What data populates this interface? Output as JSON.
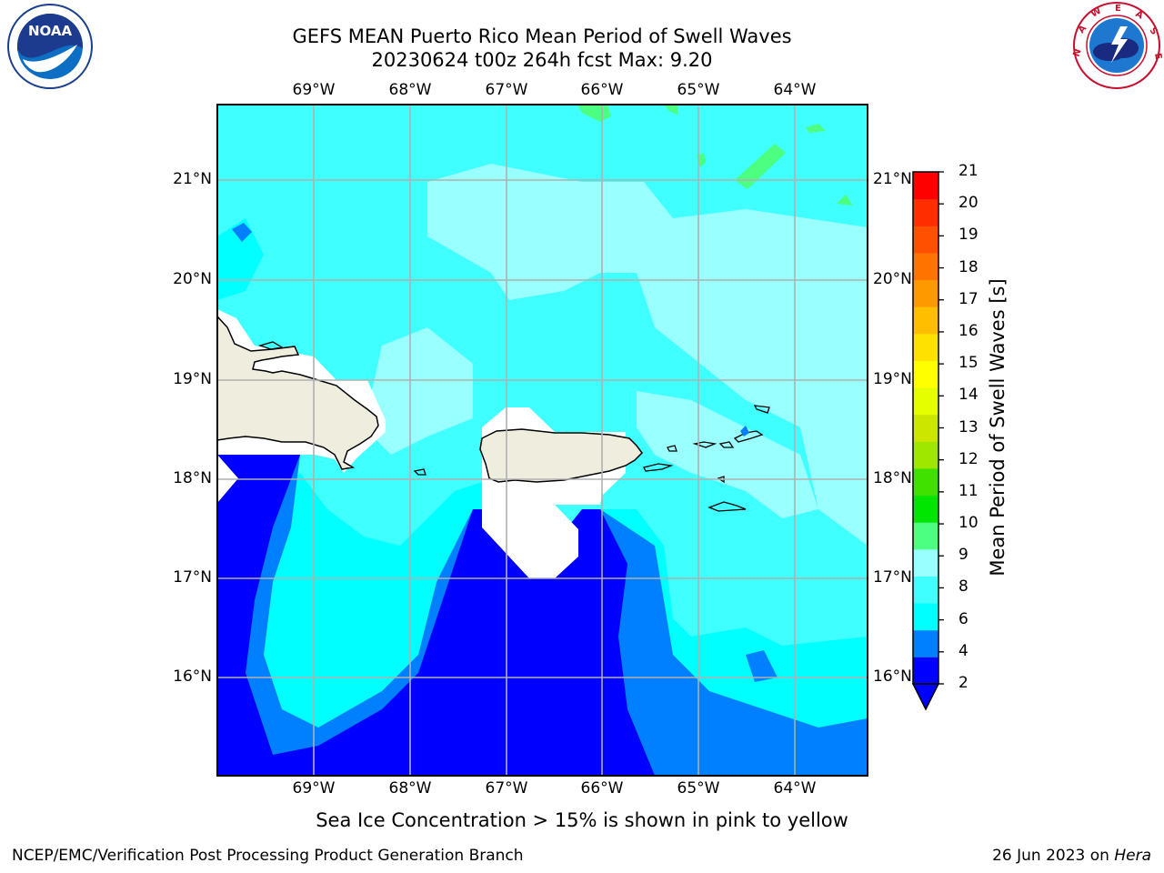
{
  "header": {
    "title_line1": "GEFS MEAN Puerto Rico Mean Period of Swell Waves",
    "title_line2": "20230624 t00z 264h fcst   Max: 9.20"
  },
  "logos": {
    "left": "NOAA",
    "left_ring": "NATIONAL OCEANIC AND ATMOSPHERIC ADMINISTRATION · U.S. DEPARTMENT OF COMMERCE",
    "right_ring": "NATIONAL WEATHER SERVICE"
  },
  "map": {
    "lon_labels": [
      "69°W",
      "68°W",
      "67°W",
      "66°W",
      "65°W",
      "64°W"
    ],
    "lat_labels": [
      "21°N",
      "20°N",
      "19°N",
      "18°N",
      "17°N",
      "16°N"
    ],
    "land_color": "#efedde",
    "coast_color": "#000000",
    "grid_color": "#b0b0b0"
  },
  "colorbar": {
    "title": "Mean Period of Swell Waves [s]",
    "ticks": [
      "21",
      "20",
      "19",
      "18",
      "17",
      "16",
      "15",
      "14",
      "13",
      "12",
      "11",
      "10",
      "9",
      "8",
      "6",
      "4",
      "2"
    ],
    "colors": [
      "#0000ff",
      "#0080ff",
      "#00ffff",
      "#40ffff",
      "#99ffff",
      "#4dff80",
      "#00e600",
      "#40e000",
      "#9fe600",
      "#cce600",
      "#e6ff00",
      "#ffff00",
      "#ffe100",
      "#ffbf00",
      "#ff9900",
      "#ff7300",
      "#ff5000",
      "#ff2d00",
      "#ff0000"
    ]
  },
  "footer": {
    "note": "Sea Ice Concentration > 15% is shown in pink to yellow",
    "left": "NCEP/EMC/Verification Post Processing Product Generation Branch",
    "right_date": "26 Jun 2023 on",
    "right_host": "Hera"
  }
}
